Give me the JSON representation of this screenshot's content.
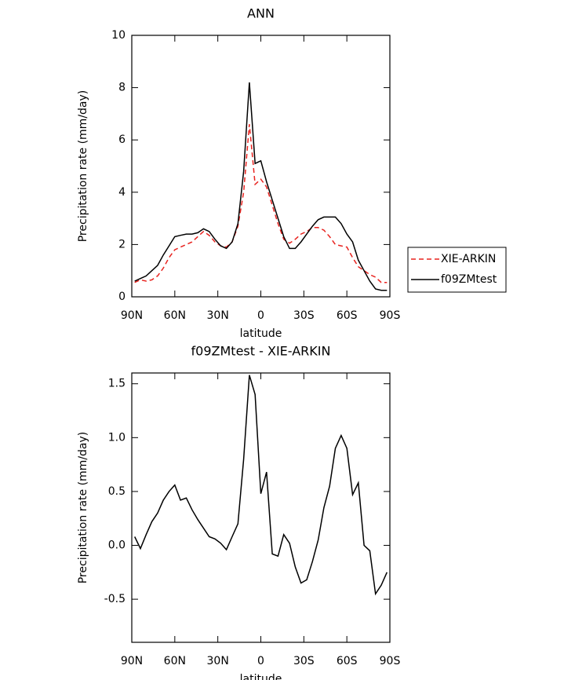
{
  "chart_data": [
    {
      "type": "line",
      "title": "ANN",
      "x_label": "latitude",
      "y_label": "Precipitation rate (mm/day)",
      "x": [
        88,
        84,
        80,
        76,
        72,
        68,
        64,
        60,
        56,
        52,
        48,
        44,
        40,
        36,
        32,
        28,
        24,
        20,
        16,
        12,
        8,
        4,
        0,
        -4,
        -8,
        -12,
        -16,
        -20,
        -24,
        -28,
        -32,
        -36,
        -40,
        -44,
        -48,
        -52,
        -56,
        -60,
        -64,
        -68,
        -72,
        -76,
        -80,
        -84,
        -88
      ],
      "series": [
        {
          "name": "XIE-ARKIN",
          "color": "#e8231f",
          "dash": true,
          "values": [
            0.55,
            0.65,
            0.6,
            0.65,
            0.8,
            1.1,
            1.5,
            1.8,
            1.9,
            2.0,
            2.1,
            2.3,
            2.5,
            2.35,
            2.1,
            1.95,
            1.9,
            2.1,
            2.7,
            4.0,
            6.6,
            4.3,
            4.5,
            4.2,
            3.5,
            2.8,
            2.2,
            2.05,
            2.2,
            2.4,
            2.5,
            2.65,
            2.65,
            2.55,
            2.3,
            2.0,
            1.95,
            1.9,
            1.5,
            1.15,
            1.0,
            0.85,
            0.75,
            0.55,
            0.55
          ]
        },
        {
          "name": "f09ZMtest",
          "color": "#000000",
          "dash": false,
          "values": [
            0.6,
            0.7,
            0.8,
            1.0,
            1.2,
            1.6,
            1.95,
            2.3,
            2.35,
            2.4,
            2.4,
            2.45,
            2.6,
            2.5,
            2.2,
            1.95,
            1.85,
            2.1,
            2.8,
            4.8,
            8.2,
            5.1,
            5.2,
            4.4,
            3.7,
            3.0,
            2.3,
            1.85,
            1.85,
            2.1,
            2.4,
            2.7,
            2.95,
            3.05,
            3.05,
            3.05,
            2.8,
            2.4,
            2.1,
            1.4,
            1.0,
            0.6,
            0.3,
            0.25,
            0.25
          ]
        }
      ],
      "xlim": [
        90,
        -90
      ],
      "xticks": [
        {
          "value": 90,
          "label": "90N"
        },
        {
          "value": 60,
          "label": "60N"
        },
        {
          "value": 30,
          "label": "30N"
        },
        0,
        {
          "value": -30,
          "label": "30S"
        },
        {
          "value": -60,
          "label": "60S"
        },
        {
          "value": -90,
          "label": "90S"
        }
      ],
      "ylim": [
        0,
        10
      ],
      "yticks": [
        0,
        2,
        4,
        6,
        8,
        10
      ],
      "legend": "right"
    },
    {
      "type": "line",
      "title": "f09ZMtest - XIE-ARKIN",
      "x_label": "latitude",
      "y_label": "Precipitation rate (mm/day)",
      "x": [
        88,
        84,
        80,
        76,
        72,
        68,
        64,
        60,
        56,
        52,
        48,
        44,
        40,
        36,
        32,
        28,
        24,
        20,
        16,
        12,
        8,
        4,
        0,
        -4,
        -8,
        -12,
        -16,
        -20,
        -24,
        -28,
        -32,
        -36,
        -40,
        -44,
        -48,
        -52,
        -56,
        -60,
        -64,
        -68,
        -72,
        -76,
        -80,
        -84,
        -88
      ],
      "series": [
        {
          "color": "#000000",
          "values": [
            0.08,
            -0.03,
            0.1,
            0.22,
            0.3,
            0.42,
            0.5,
            0.56,
            0.42,
            0.44,
            0.33,
            0.24,
            0.16,
            0.08,
            0.06,
            0.02,
            -0.04,
            0.08,
            0.2,
            0.8,
            1.58,
            1.4,
            0.48,
            0.68,
            -0.08,
            -0.1,
            0.1,
            0.02,
            -0.2,
            -0.35,
            -0.32,
            -0.15,
            0.05,
            0.35,
            0.55,
            0.9,
            1.02,
            0.9,
            0.47,
            0.58,
            0.0,
            -0.05,
            -0.45,
            -0.37,
            -0.25
          ]
        }
      ],
      "xlim": [
        90,
        -90
      ],
      "xticks": [
        {
          "value": 90,
          "label": "90N"
        },
        {
          "value": 60,
          "label": "60N"
        },
        {
          "value": 30,
          "label": "30N"
        },
        0,
        {
          "value": -30,
          "label": "30S"
        },
        {
          "value": -60,
          "label": "60S"
        },
        {
          "value": -90,
          "label": "90S"
        }
      ],
      "ylim": [
        -0.9,
        1.6
      ],
      "yticks": [
        -0.5,
        {
          "value": 0,
          "label": "0.0"
        },
        0.5,
        {
          "value": 1,
          "label": "1.0"
        },
        1.5
      ]
    }
  ]
}
